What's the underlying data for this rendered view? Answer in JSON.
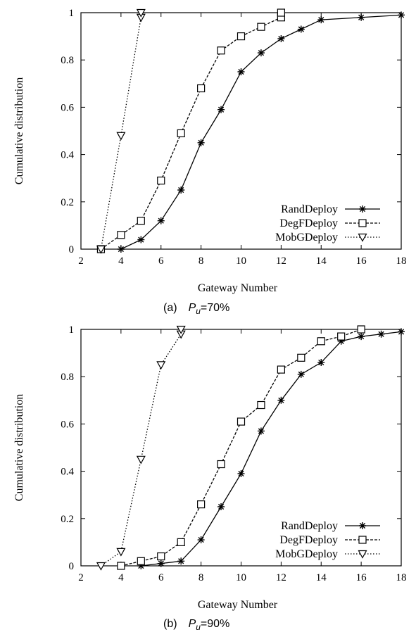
{
  "chart_data": [
    {
      "type": "line",
      "caption": {
        "letter": "(a)",
        "var": "P",
        "sub": "u",
        "value": "=70%"
      },
      "xlabel": "Gateway Number",
      "ylabel": "Cumulative distribution",
      "xlim": [
        2,
        18
      ],
      "ylim": [
        0,
        1
      ],
      "xticks": [
        "2",
        "4",
        "6",
        "8",
        "10",
        "12",
        "14",
        "16",
        "18"
      ],
      "yticks": [
        "0",
        "0.2",
        "0.4",
        "0.6",
        "0.8",
        "1"
      ],
      "grid": false,
      "legend": "bottom-right",
      "series": [
        {
          "name": "RandDeploy",
          "line": "solid",
          "marker": "star",
          "x": [
            4,
            5,
            6,
            7,
            8,
            9,
            10,
            11,
            12,
            13,
            14,
            16,
            18
          ],
          "y": [
            0,
            0.04,
            0.12,
            0.25,
            0.45,
            0.59,
            0.75,
            0.83,
            0.89,
            0.93,
            0.97,
            0.98,
            0.99
          ]
        },
        {
          "name": "DegFDeploy",
          "line": "dashed",
          "marker": "square",
          "x": [
            3,
            4,
            5,
            6,
            7,
            8,
            9,
            10,
            11,
            12,
            12
          ],
          "y": [
            0,
            0.06,
            0.12,
            0.29,
            0.49,
            0.68,
            0.84,
            0.9,
            0.94,
            0.98,
            1.0
          ]
        },
        {
          "name": "MobGDeploy",
          "line": "dotted",
          "marker": "triangle-down",
          "x": [
            3,
            4,
            5,
            5
          ],
          "y": [
            0,
            0.48,
            0.98,
            1.0
          ]
        }
      ]
    },
    {
      "type": "line",
      "caption": {
        "letter": "(b)",
        "var": "P",
        "sub": "u",
        "value": "=90%"
      },
      "xlabel": "Gateway Number",
      "ylabel": "Cumulative distribution",
      "xlim": [
        2,
        18
      ],
      "ylim": [
        0,
        1
      ],
      "xticks": [
        "2",
        "4",
        "6",
        "8",
        "10",
        "12",
        "14",
        "16",
        "18"
      ],
      "yticks": [
        "0",
        "0.2",
        "0.4",
        "0.6",
        "0.8",
        "1"
      ],
      "grid": false,
      "legend": "bottom-right",
      "series": [
        {
          "name": "RandDeploy",
          "line": "solid",
          "marker": "star",
          "x": [
            5,
            6,
            7,
            8,
            9,
            10,
            11,
            12,
            13,
            14,
            15,
            16,
            17,
            18
          ],
          "y": [
            0,
            0.01,
            0.02,
            0.11,
            0.25,
            0.39,
            0.57,
            0.7,
            0.81,
            0.86,
            0.95,
            0.97,
            0.98,
            0.99
          ]
        },
        {
          "name": "DegFDeploy",
          "line": "dashed",
          "marker": "square",
          "x": [
            4,
            5,
            6,
            7,
            8,
            9,
            10,
            11,
            12,
            13,
            14,
            15,
            16
          ],
          "y": [
            0,
            0.02,
            0.04,
            0.1,
            0.26,
            0.43,
            0.61,
            0.68,
            0.83,
            0.88,
            0.95,
            0.97,
            1.0
          ]
        },
        {
          "name": "MobGDeploy",
          "line": "dotted",
          "marker": "triangle-down",
          "x": [
            3,
            4,
            5,
            6,
            7,
            7
          ],
          "y": [
            0,
            0.06,
            0.45,
            0.85,
            0.98,
            1.0
          ]
        }
      ]
    }
  ]
}
